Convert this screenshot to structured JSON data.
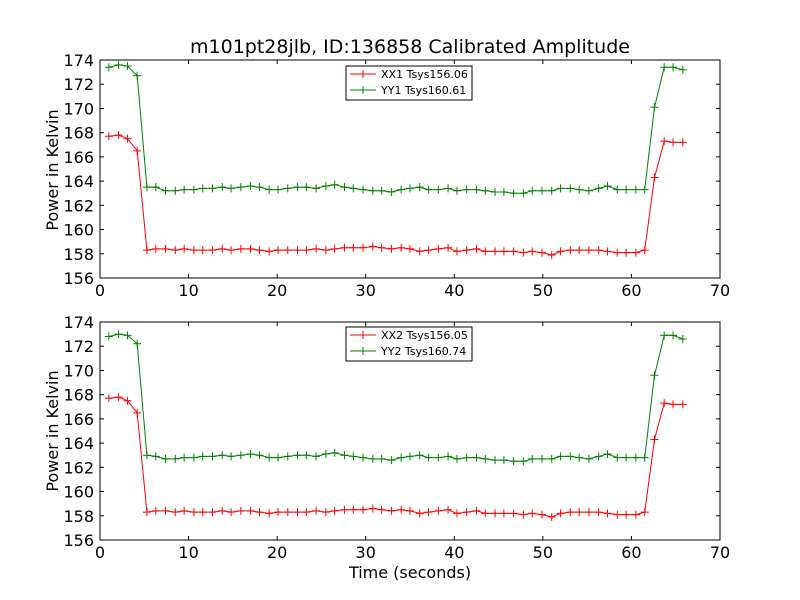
{
  "chart_data": [
    {
      "type": "line",
      "title": "m101pt28jlb, ID:136858 Calibrated Amplitude",
      "xlabel": "",
      "ylabel": "Power in Kelvin",
      "xlim": [
        0,
        70
      ],
      "ylim": [
        156,
        174
      ],
      "xticks": [
        "0",
        "10",
        "20",
        "30",
        "40",
        "50",
        "60",
        "70"
      ],
      "yticks": [
        "156",
        "158",
        "160",
        "162",
        "164",
        "166",
        "168",
        "170",
        "172",
        "174"
      ],
      "legend_position": "top-center",
      "grid": false,
      "x": [
        1.0,
        2.1,
        3.1,
        4.2,
        5.3,
        6.3,
        7.4,
        8.5,
        9.5,
        10.6,
        11.6,
        12.7,
        13.8,
        14.8,
        15.9,
        17.0,
        18.0,
        19.1,
        20.1,
        21.2,
        22.3,
        23.3,
        24.4,
        25.5,
        26.5,
        27.6,
        28.6,
        29.7,
        30.8,
        31.8,
        32.9,
        34.0,
        35.0,
        36.1,
        37.1,
        38.2,
        39.3,
        40.3,
        41.4,
        42.5,
        43.5,
        44.6,
        45.6,
        46.7,
        47.8,
        48.8,
        49.9,
        51.0,
        52.0,
        53.1,
        54.1,
        55.2,
        56.3,
        57.3,
        58.4,
        59.4,
        60.5,
        61.5,
        62.6,
        63.7,
        64.7,
        65.8
      ],
      "series": [
        {
          "name": "XX1 Tsys156.06",
          "color": "#ff0000",
          "values": [
            167.7,
            167.8,
            167.5,
            166.5,
            158.3,
            158.4,
            158.4,
            158.3,
            158.4,
            158.3,
            158.3,
            158.3,
            158.4,
            158.3,
            158.4,
            158.4,
            158.3,
            158.2,
            158.3,
            158.3,
            158.3,
            158.3,
            158.4,
            158.3,
            158.4,
            158.5,
            158.5,
            158.5,
            158.6,
            158.5,
            158.4,
            158.5,
            158.4,
            158.2,
            158.3,
            158.4,
            158.5,
            158.2,
            158.3,
            158.4,
            158.2,
            158.2,
            158.2,
            158.2,
            158.1,
            158.2,
            158.1,
            157.9,
            158.2,
            158.3,
            158.3,
            158.3,
            158.3,
            158.2,
            158.1,
            158.1,
            158.1,
            158.3,
            164.3,
            167.3,
            167.2,
            167.2
          ]
        },
        {
          "name": "YY1 Tsys160.61",
          "color": "#008000",
          "values": [
            173.4,
            173.6,
            173.5,
            172.7,
            163.5,
            163.5,
            163.2,
            163.2,
            163.3,
            163.3,
            163.4,
            163.4,
            163.5,
            163.4,
            163.5,
            163.6,
            163.5,
            163.3,
            163.3,
            163.4,
            163.5,
            163.5,
            163.4,
            163.6,
            163.7,
            163.5,
            163.4,
            163.3,
            163.2,
            163.2,
            163.1,
            163.3,
            163.4,
            163.5,
            163.3,
            163.3,
            163.4,
            163.2,
            163.3,
            163.3,
            163.2,
            163.1,
            163.1,
            163.0,
            163.0,
            163.2,
            163.2,
            163.2,
            163.4,
            163.4,
            163.3,
            163.2,
            163.4,
            163.6,
            163.3,
            163.3,
            163.3,
            163.3,
            170.1,
            173.4,
            173.4,
            173.2
          ]
        }
      ]
    },
    {
      "type": "line",
      "title": "",
      "xlabel": "Time (seconds)",
      "ylabel": "Power in Kelvin",
      "xlim": [
        0,
        70
      ],
      "ylim": [
        156,
        174
      ],
      "xticks": [
        "0",
        "10",
        "20",
        "30",
        "40",
        "50",
        "60",
        "70"
      ],
      "yticks": [
        "156",
        "158",
        "160",
        "162",
        "164",
        "166",
        "168",
        "170",
        "172",
        "174"
      ],
      "legend_position": "top-center",
      "grid": false,
      "x": [
        1.0,
        2.1,
        3.1,
        4.2,
        5.3,
        6.3,
        7.4,
        8.5,
        9.5,
        10.6,
        11.6,
        12.7,
        13.8,
        14.8,
        15.9,
        17.0,
        18.0,
        19.1,
        20.1,
        21.2,
        22.3,
        23.3,
        24.4,
        25.5,
        26.5,
        27.6,
        28.6,
        29.7,
        30.8,
        31.8,
        32.9,
        34.0,
        35.0,
        36.1,
        37.1,
        38.2,
        39.3,
        40.3,
        41.4,
        42.5,
        43.5,
        44.6,
        45.6,
        46.7,
        47.8,
        48.8,
        49.9,
        51.0,
        52.0,
        53.1,
        54.1,
        55.2,
        56.3,
        57.3,
        58.4,
        59.4,
        60.5,
        61.5,
        62.6,
        63.7,
        64.7,
        65.8
      ],
      "series": [
        {
          "name": "XX2 Tsys156.05",
          "color": "#ff0000",
          "values": [
            167.7,
            167.8,
            167.5,
            166.5,
            158.3,
            158.4,
            158.4,
            158.3,
            158.4,
            158.3,
            158.3,
            158.3,
            158.4,
            158.3,
            158.4,
            158.4,
            158.3,
            158.2,
            158.3,
            158.3,
            158.3,
            158.3,
            158.4,
            158.3,
            158.4,
            158.5,
            158.5,
            158.5,
            158.6,
            158.5,
            158.4,
            158.5,
            158.4,
            158.2,
            158.3,
            158.4,
            158.5,
            158.2,
            158.3,
            158.4,
            158.2,
            158.2,
            158.2,
            158.2,
            158.1,
            158.2,
            158.1,
            157.9,
            158.2,
            158.3,
            158.3,
            158.3,
            158.3,
            158.2,
            158.1,
            158.1,
            158.1,
            158.3,
            164.3,
            167.3,
            167.2,
            167.2
          ]
        },
        {
          "name": "YY2 Tsys160.74",
          "color": "#008000",
          "values": [
            172.8,
            173.0,
            172.9,
            172.2,
            163.0,
            162.9,
            162.7,
            162.7,
            162.8,
            162.8,
            162.9,
            162.9,
            163.0,
            162.9,
            163.0,
            163.1,
            163.0,
            162.8,
            162.8,
            162.9,
            163.0,
            163.0,
            162.9,
            163.1,
            163.2,
            163.0,
            162.9,
            162.8,
            162.7,
            162.7,
            162.6,
            162.8,
            162.9,
            163.0,
            162.8,
            162.8,
            162.9,
            162.7,
            162.8,
            162.8,
            162.7,
            162.6,
            162.6,
            162.5,
            162.5,
            162.7,
            162.7,
            162.7,
            162.9,
            162.9,
            162.8,
            162.7,
            162.9,
            163.1,
            162.8,
            162.8,
            162.8,
            162.8,
            169.6,
            172.9,
            172.9,
            172.6
          ]
        }
      ]
    }
  ]
}
